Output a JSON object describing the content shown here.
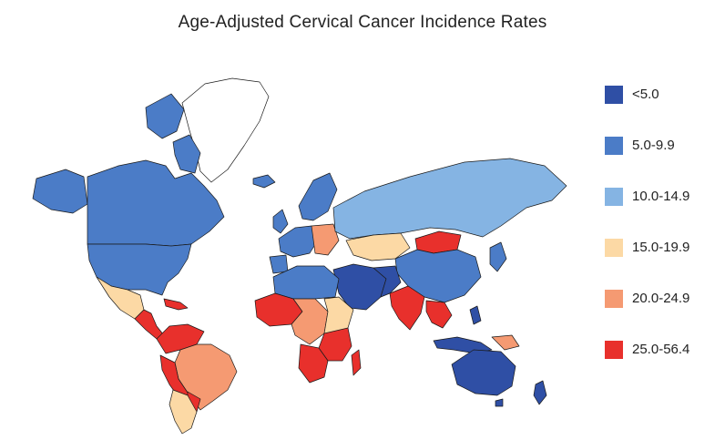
{
  "title": "Age-Adjusted Cervical Cancer Incidence Rates",
  "legend": [
    {
      "label": "<5.0",
      "color": "#2f4fa5"
    },
    {
      "label": "5.0-9.9",
      "color": "#4b7cc7"
    },
    {
      "label": "10.0-14.9",
      "color": "#85b4e3"
    },
    {
      "label": "15.0-19.9",
      "color": "#fcd9a5"
    },
    {
      "label": "20.0-24.9",
      "color": "#f59a72"
    },
    {
      "label": "25.0-56.4",
      "color": "#e8302c"
    }
  ],
  "colors": {
    "border": "#1a1a1a",
    "nodata": "#ffffff"
  }
}
